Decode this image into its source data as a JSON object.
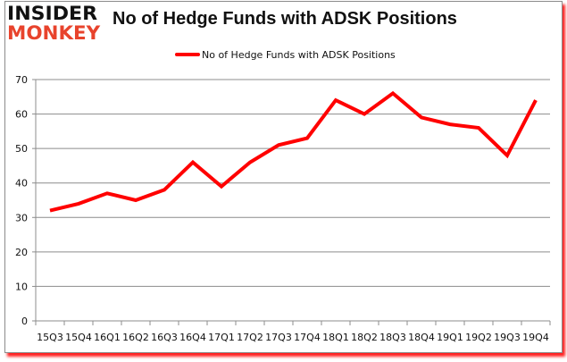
{
  "logo": {
    "line1": "INSIDER",
    "line2": "MONKEY"
  },
  "title": "No of Hedge Funds with ADSK Positions",
  "legend": {
    "label": "No of Hedge Funds with ADSK Positions",
    "color": "#ff0000"
  },
  "chart_data": {
    "type": "line",
    "title": "No of Hedge Funds with ADSK Positions",
    "xlabel": "",
    "ylabel": "",
    "ylim": [
      0,
      70
    ],
    "yticks": [
      0,
      10,
      20,
      30,
      40,
      50,
      60,
      70
    ],
    "grid": true,
    "legend_position": "top",
    "categories": [
      "15Q3",
      "15Q4",
      "16Q1",
      "16Q2",
      "16Q3",
      "16Q4",
      "17Q1",
      "17Q2",
      "17Q3",
      "17Q4",
      "18Q1",
      "18Q2",
      "18Q3",
      "18Q4",
      "19Q1",
      "19Q2",
      "19Q3",
      "19Q4"
    ],
    "series": [
      {
        "name": "No of Hedge Funds with ADSK Positions",
        "color": "#ff0000",
        "values": [
          32,
          34,
          37,
          35,
          38,
          46,
          39,
          46,
          51,
          53,
          64,
          60,
          66,
          59,
          57,
          56,
          48,
          64
        ]
      }
    ]
  }
}
